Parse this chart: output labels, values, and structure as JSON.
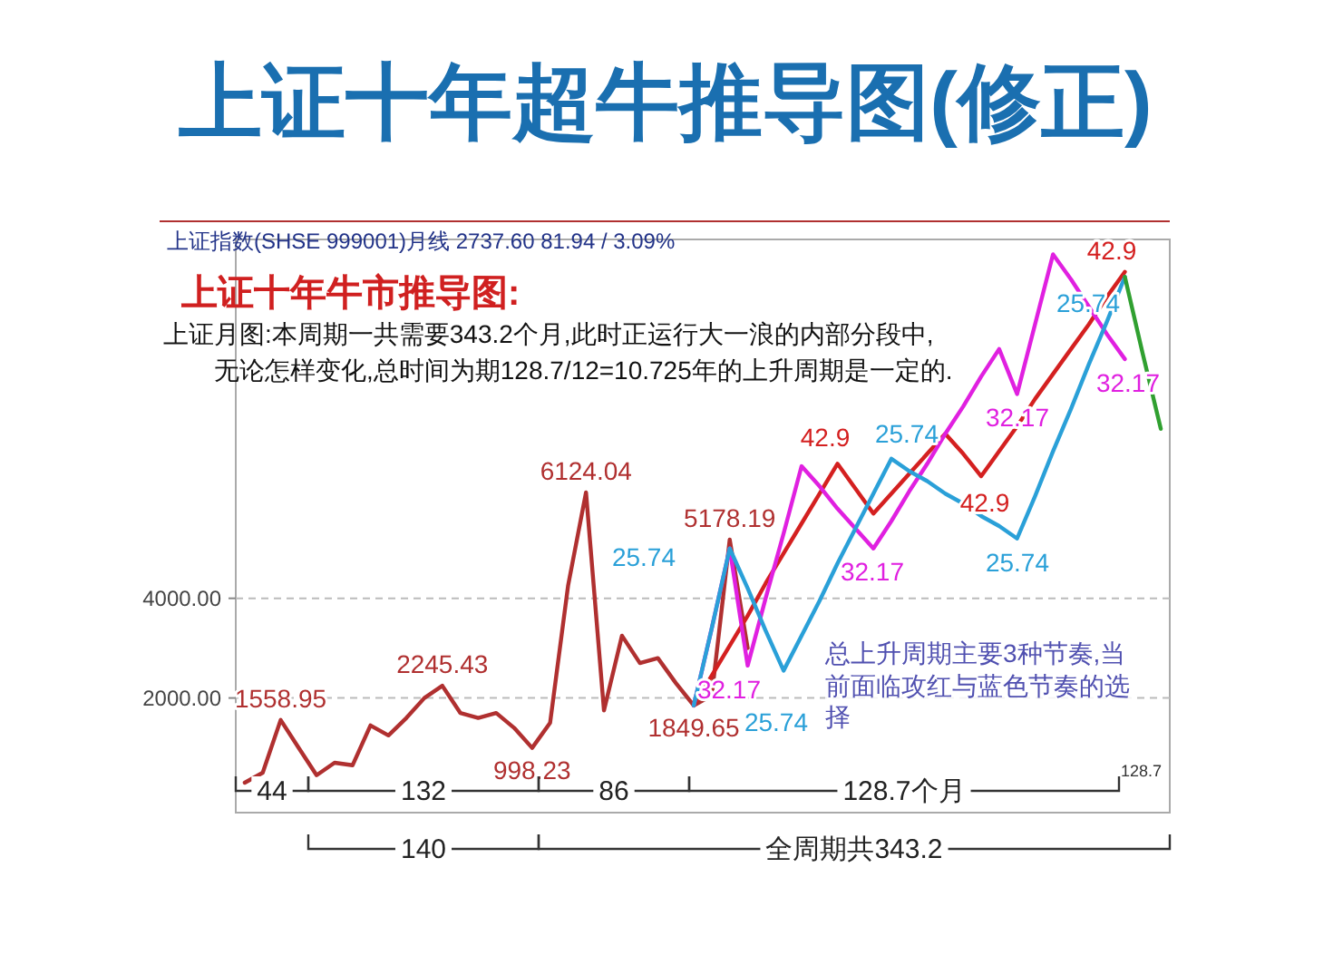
{
  "chart_data": {
    "type": "line",
    "title": "上证十年超牛推导图(修正)",
    "subtitle": "上证十年牛市推导图:",
    "categories": [
      null,
      null,
      null,
      null,
      null,
      null,
      null,
      null,
      null,
      null,
      null,
      null,
      null,
      null,
      null,
      null,
      null,
      null,
      null,
      null,
      null,
      null,
      null,
      null,
      null,
      null,
      null,
      null,
      null,
      null,
      null,
      null,
      null,
      null,
      null,
      null,
      null,
      null,
      null,
      null,
      null,
      null,
      null,
      null,
      null,
      null,
      null,
      null,
      null,
      null,
      null,
      null
    ],
    "ylim": [
      -300,
      11200
    ],
    "yticks": [
      {
        "value": 2000,
        "label": "2000.00"
      },
      {
        "value": 4000,
        "label": "4000.00"
      }
    ],
    "grid": "y",
    "tick_labels": "y",
    "series": [
      {
        "type": "line",
        "color": "#b03030",
        "values": [
          300,
          500,
          1558.95,
          1000,
          450,
          700,
          650,
          1450,
          1250,
          1600,
          2000,
          2245.43,
          1700,
          1600,
          1700,
          1400,
          998.23,
          1500,
          4250,
          6124.04,
          1750,
          3250,
          2700,
          2800,
          2300,
          1849.65,
          2050,
          5178.19,
          3000,
          null,
          null,
          null,
          null,
          null,
          null,
          null,
          null,
          null,
          null,
          null,
          null,
          null,
          null,
          null,
          null,
          null,
          null,
          null,
          null,
          null,
          null,
          null
        ],
        "value_labels": [
          null,
          null,
          "1558.95",
          null,
          null,
          null,
          null,
          null,
          null,
          null,
          null,
          "2245.43",
          null,
          null,
          null,
          null,
          "998.23",
          null,
          null,
          "6124.04",
          null,
          null,
          null,
          null,
          null,
          "1849.65",
          null,
          "5178.19",
          null,
          null,
          null,
          null,
          null,
          null,
          null,
          null,
          null,
          null,
          null,
          null,
          null,
          null,
          null,
          null,
          null,
          null,
          null,
          null,
          null,
          null,
          null,
          null
        ]
      },
      {
        "type": "line",
        "color": "#d42020",
        "values": [
          null,
          null,
          null,
          null,
          null,
          null,
          null,
          null,
          null,
          null,
          null,
          null,
          null,
          null,
          null,
          null,
          null,
          null,
          null,
          null,
          null,
          null,
          null,
          null,
          null,
          1850,
          2450,
          3050,
          3650,
          4300,
          4900,
          5500,
          6100,
          6700,
          6200,
          5700,
          6100,
          6500,
          6900,
          7300,
          6900,
          6450,
          6950,
          7450,
          8000,
          8500,
          9000,
          9500,
          10050,
          10550,
          null,
          null
        ]
      },
      {
        "type": "line",
        "color": "#e020e0",
        "values": [
          null,
          null,
          null,
          null,
          null,
          null,
          null,
          null,
          null,
          null,
          null,
          null,
          null,
          null,
          null,
          null,
          null,
          null,
          null,
          null,
          null,
          null,
          null,
          null,
          null,
          1850,
          3400,
          5000,
          2650,
          4000,
          5300,
          6650,
          6250,
          5800,
          5400,
          5000,
          5550,
          6150,
          6700,
          7300,
          7850,
          8450,
          9000,
          8100,
          9500,
          10900,
          10400,
          9850,
          9300,
          8800,
          null,
          null
        ]
      },
      {
        "type": "line",
        "color": "#2aa0d8",
        "values": [
          null,
          null,
          null,
          null,
          null,
          null,
          null,
          null,
          null,
          null,
          null,
          null,
          null,
          null,
          null,
          null,
          null,
          null,
          null,
          null,
          null,
          null,
          null,
          null,
          null,
          1850,
          3400,
          5000,
          4200,
          3350,
          2550,
          3250,
          3950,
          4700,
          5400,
          6100,
          6800,
          6550,
          6350,
          6100,
          5900,
          5650,
          5450,
          5200,
          6050,
          6950,
          7800,
          8700,
          9550,
          10450,
          null,
          null
        ]
      },
      {
        "type": "line",
        "color": "#30a030",
        "values": [
          null,
          null,
          null,
          null,
          null,
          null,
          null,
          null,
          null,
          null,
          null,
          null,
          null,
          null,
          null,
          null,
          null,
          null,
          null,
          null,
          null,
          null,
          null,
          null,
          null,
          null,
          null,
          null,
          null,
          null,
          null,
          null,
          null,
          null,
          null,
          null,
          null,
          null,
          null,
          null,
          null,
          null,
          null,
          null,
          null,
          null,
          null,
          null,
          null,
          10450,
          8900,
          7400
        ]
      }
    ],
    "annotations": [
      "上证指数(SHSE 999001)月线    2737.60    81.94 / 3.09%",
      "上证月图:本周期一共需要343.2个月,此时正运行大一浪的内部分段中,",
      "无论怎样变化,总时间为期128.7/12=10.725年的上升周期是一定的.",
      "总上升周期主要3种节奏,当前面临攻红与蓝色节奏的选择",
      "128.7",
      "44",
      "132",
      "86",
      "128.7个月",
      "140",
      "全周期共343.2",
      "42.9",
      "42.9",
      "42.9",
      "32.17",
      "32.17",
      "32.17",
      "32.17",
      "25.74",
      "25.74",
      "25.74",
      "25.74",
      "25.74"
    ]
  }
}
